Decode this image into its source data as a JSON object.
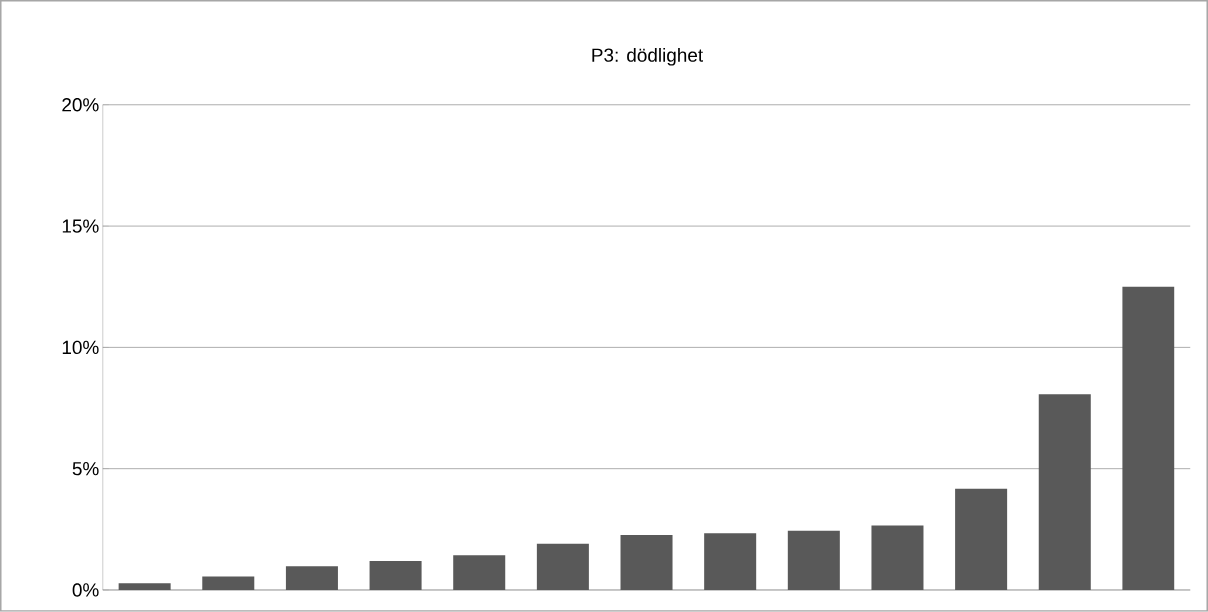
{
  "chart_data": {
    "type": "bar",
    "title": "P3: dödlighet",
    "categories": [
      null,
      null,
      null,
      null,
      null,
      null,
      null,
      null,
      null,
      null,
      null,
      null,
      null
    ],
    "values": [
      0.28,
      0.56,
      0.98,
      1.19,
      1.43,
      1.91,
      2.27,
      2.34,
      2.44,
      2.66,
      4.17,
      8.07,
      12.5
    ],
    "color": "#595959",
    "ylim": [
      0,
      20
    ],
    "yticks": [
      {
        "value": 0,
        "label": "0%"
      },
      {
        "value": 5,
        "label": "5%"
      },
      {
        "value": 10,
        "label": "10%"
      },
      {
        "value": 15,
        "label": "15%"
      },
      {
        "value": 20,
        "label": "20%"
      }
    ],
    "grid": "y"
  }
}
